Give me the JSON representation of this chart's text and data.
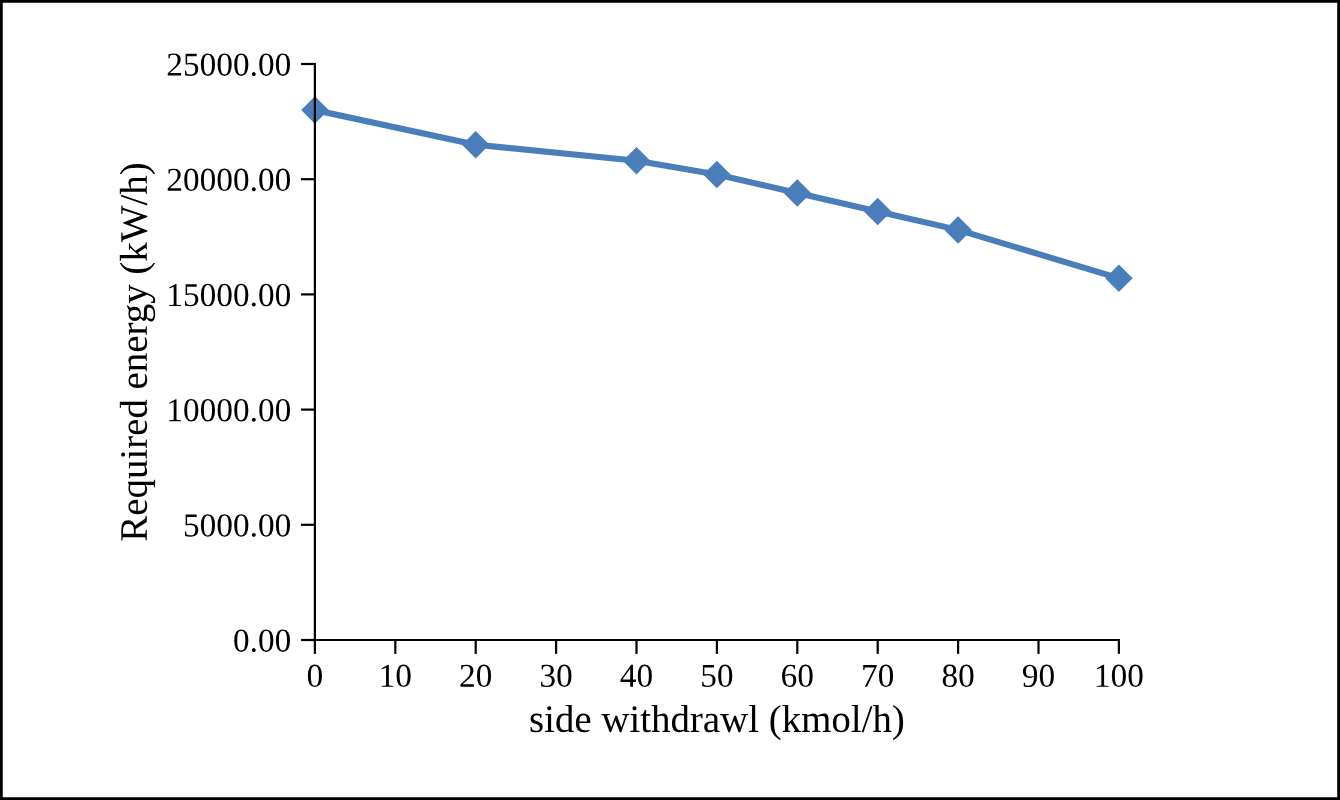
{
  "chart_data": {
    "type": "line",
    "xlabel": "side withdrawl (kmol/h)",
    "ylabel": "Required energy (kW/h)",
    "x": [
      0,
      20,
      40,
      50,
      60,
      70,
      80,
      100
    ],
    "series": [
      {
        "color": "#4a7ebb",
        "values": [
          23000,
          21500,
          20800,
          20200,
          19400,
          18600,
          17800,
          15700
        ]
      }
    ],
    "xlim": [
      0,
      100
    ],
    "xticks": [
      0,
      10,
      20,
      30,
      40,
      50,
      60,
      70,
      80,
      90,
      100
    ],
    "ylim": [
      0,
      25000
    ],
    "yticks": [
      {
        "value": 0,
        "label": "0.00"
      },
      {
        "value": 5000,
        "label": "5000.00"
      },
      {
        "value": 10000,
        "label": "10000.00"
      },
      {
        "value": 15000,
        "label": "15000.00"
      },
      {
        "value": 20000,
        "label": "20000.00"
      },
      {
        "value": 25000,
        "label": "25000.00"
      }
    ],
    "marker": "diamond",
    "line_style": "solid",
    "grid": false,
    "legend": false
  }
}
